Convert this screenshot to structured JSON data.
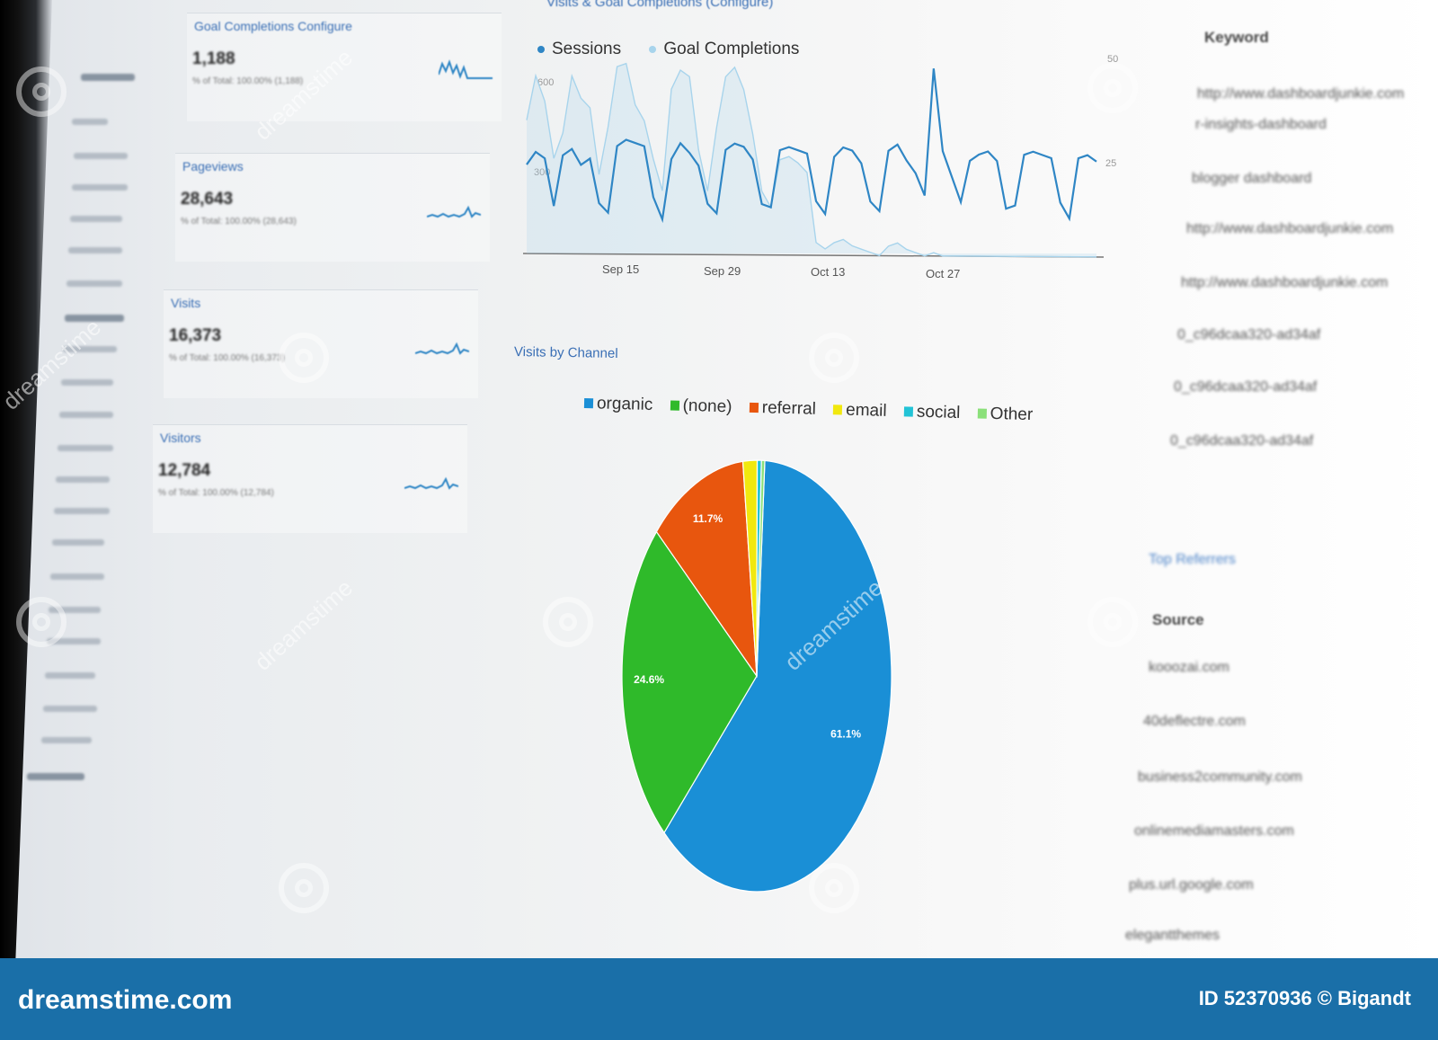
{
  "metric_cards": [
    {
      "title": "Goal Completions Configure",
      "value": "1,188",
      "sub": "% of Total: 100.00% (1,188)"
    },
    {
      "title": "Pageviews",
      "value": "28,643",
      "sub": "% of Total: 100.00% (28,643)"
    },
    {
      "title": "Visits",
      "value": "16,373",
      "sub": "% of Total: 100.00% (16,373)"
    },
    {
      "title": "Visitors",
      "value": "12,784",
      "sub": "% of Total: 100.00% (12,784)"
    }
  ],
  "line_panel": {
    "title": "Visits & Goal Completions (Configure)",
    "legend": [
      "Sessions",
      "Goal Completions"
    ],
    "y_ticks": [
      "600",
      "300"
    ],
    "x_ticks": [
      "Sep 15",
      "Sep 29",
      "Oct 13",
      "Oct 27"
    ],
    "right_ticks": [
      "50",
      "25"
    ]
  },
  "pie_panel": {
    "title": "Visits by Channel",
    "legend": [
      "organic",
      "(none)",
      "referral",
      "email",
      "social",
      "Other"
    ],
    "slice_labels": [
      "61.1%",
      "24.6%",
      "11.7%"
    ]
  },
  "chart_data": [
    {
      "type": "line",
      "title": "Visits & Goal Completions (Configure)",
      "x_ticks": [
        "Sep 15",
        "Sep 29",
        "Oct 13",
        "Oct 27"
      ],
      "ylim": [
        0,
        600
      ],
      "series": [
        {
          "name": "Sessions",
          "color": "#2f86c5",
          "values": [
            280,
            320,
            300,
            150,
            310,
            330,
            280,
            300,
            160,
            130,
            340,
            360,
            350,
            340,
            180,
            110,
            300,
            350,
            320,
            280,
            160,
            130,
            330,
            350,
            340,
            300,
            160,
            150,
            330,
            340,
            330,
            320,
            170,
            130,
            310,
            340,
            330,
            290,
            170,
            140,
            330,
            350,
            300,
            260,
            190,
            590,
            330,
            250,
            170,
            300,
            320,
            330,
            300,
            150,
            160,
            320,
            330,
            320,
            310,
            170,
            120,
            310,
            320,
            300
          ]
        },
        {
          "name": "Goal Completions",
          "color": "#a8d4ec",
          "values": [
            420,
            560,
            480,
            300,
            380,
            560,
            490,
            460,
            250,
            400,
            590,
            600,
            470,
            420,
            300,
            200,
            520,
            580,
            560,
            330,
            200,
            400,
            560,
            590,
            520,
            380,
            200,
            150,
            300,
            310,
            290,
            260,
            40,
            20,
            40,
            50,
            30,
            20,
            10,
            0,
            30,
            40,
            20,
            10,
            0,
            10,
            0,
            0,
            0,
            0,
            0,
            0,
            0,
            0,
            0,
            0,
            0,
            0,
            0,
            0,
            0,
            0,
            0,
            0
          ]
        }
      ],
      "grid": false
    },
    {
      "type": "pie",
      "title": "Visits by Channel",
      "legend_position": "top",
      "slices": [
        {
          "name": "organic",
          "value": 61.1,
          "color": "#1a8fd6",
          "label": "61.1%"
        },
        {
          "name": "(none)",
          "value": 24.6,
          "color": "#2fba2a",
          "label": "24.6%"
        },
        {
          "name": "referral",
          "value": 11.7,
          "color": "#e8560e",
          "label": "11.7%"
        },
        {
          "name": "email",
          "value": 1.7,
          "color": "#f1e80e",
          "label": ""
        },
        {
          "name": "social",
          "value": 0.5,
          "color": "#22c3d6",
          "label": ""
        },
        {
          "name": "Other",
          "value": 0.4,
          "color": "#8be07a",
          "label": ""
        }
      ]
    }
  ],
  "right_table": {
    "keyword_header": "Keyword",
    "keywords": [
      "http://www.dashboardjunkie.com",
      "r-insights-dashboard",
      "blogger dashboard",
      "http://www.dashboardjunkie.com",
      "http://www.dashboardjunkie.com",
      "0_c96dcaa320-ad34af",
      "0_c96dcaa320-ad34af",
      "0_c96dcaa320-ad34af"
    ],
    "referrers_title": "Top Referrers",
    "source_header": "Source",
    "sources": [
      "kooozai.com",
      "40deflectre.com",
      "business2community.com",
      "onlinemediamasters.com",
      "plus.url.google.com",
      "elegantthemes"
    ]
  },
  "footer": {
    "brand": "dreamstime.com",
    "id_text": "ID 52370936 © Bigandt"
  },
  "watermark_text": "dreamstime"
}
